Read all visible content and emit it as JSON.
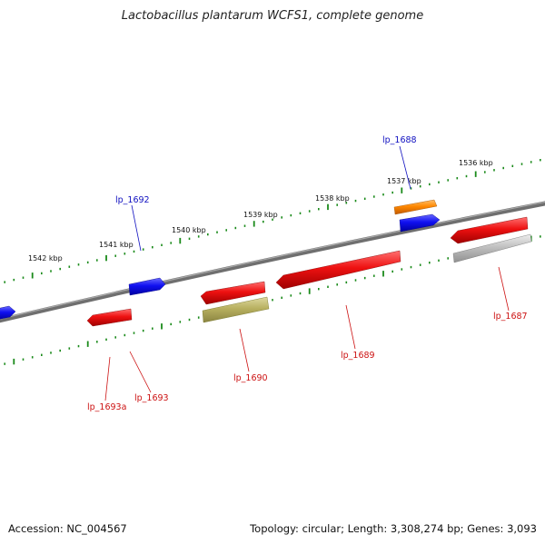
{
  "title": "Lactobacillus plantarum WCFS1, complete genome",
  "footer": {
    "accession": "Accession: NC_004567",
    "topology": "Topology: circular; Length: 3,308,274 bp; Genes: 3,093"
  },
  "kbp_labels": [
    "1542 kbp",
    "1541 kbp",
    "1540 kbp",
    "1539 kbp",
    "1538 kbp",
    "1537 kbp",
    "1536 kbp"
  ],
  "colors": {
    "backbone": "#808080",
    "scale_ticks": "#1a8a1a",
    "forward_gene": "#1010f0",
    "reverse_gene": "#ee1111",
    "orange_gene": "#ff8800",
    "olive_gene": "#b8b060",
    "grey_gene": "#c0c0c0",
    "forward_label": "#1010c0",
    "reverse_label": "#cc1111"
  },
  "genes": [
    {
      "name": "lp_1688",
      "strand": "forward"
    },
    {
      "name": "lp_1692",
      "strand": "forward"
    },
    {
      "name": "lp_1687",
      "strand": "reverse"
    },
    {
      "name": "lp_1689",
      "strand": "reverse"
    },
    {
      "name": "lp_1690",
      "strand": "reverse"
    },
    {
      "name": "lp_1693",
      "strand": "reverse"
    },
    {
      "name": "lp_1693a",
      "strand": "reverse"
    }
  ]
}
